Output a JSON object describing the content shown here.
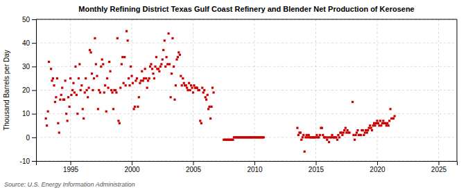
{
  "chart_data": {
    "type": "scatter",
    "title": "Monthly Refining District Texas Gulf Coast Refinery and Blender Net Production of Kerosene",
    "ylabel": "Thousand Barrels per Day",
    "annotations": [
      "Source: U.S. Energy Information Administration"
    ],
    "color": "#cc0000",
    "marker": "square",
    "grid": true,
    "xlim": [
      1992.2,
      2026.5
    ],
    "ylim": [
      -10,
      50
    ],
    "xticks": [
      1995,
      2000,
      2005,
      2010,
      2015,
      2020,
      2025
    ],
    "yticks": [
      -10,
      0,
      10,
      20,
      30,
      40,
      50
    ],
    "x": [
      1993.0,
      1993.08,
      1993.17,
      1993.25,
      1993.42,
      1993.5,
      1993.58,
      1993.67,
      1993.75,
      1993.83,
      1993.92,
      1994.0,
      1994.08,
      1994.17,
      1994.25,
      1994.33,
      1994.42,
      1994.5,
      1994.58,
      1994.67,
      1994.75,
      1994.83,
      1994.92,
      1995.0,
      1995.08,
      1995.17,
      1995.25,
      1995.33,
      1995.42,
      1995.5,
      1995.58,
      1995.67,
      1995.75,
      1995.83,
      1995.92,
      1996.0,
      1996.08,
      1996.17,
      1996.25,
      1996.33,
      1996.42,
      1996.5,
      1996.58,
      1996.67,
      1996.75,
      1996.83,
      1996.92,
      1997.0,
      1997.08,
      1997.17,
      1997.25,
      1997.33,
      1997.42,
      1997.5,
      1997.58,
      1997.67,
      1997.75,
      1997.83,
      1997.92,
      1998.0,
      1998.08,
      1998.17,
      1998.25,
      1998.33,
      1998.42,
      1998.5,
      1998.58,
      1998.67,
      1998.75,
      1998.83,
      1998.92,
      1999.0,
      1999.08,
      1999.17,
      1999.25,
      1999.33,
      1999.42,
      1999.5,
      1999.58,
      1999.67,
      1999.75,
      1999.83,
      1999.92,
      2000.0,
      2000.08,
      2000.17,
      2000.25,
      2000.33,
      2000.42,
      2000.5,
      2000.58,
      2000.67,
      2000.75,
      2000.83,
      2000.92,
      2001.0,
      2001.08,
      2001.17,
      2001.25,
      2001.33,
      2001.42,
      2001.5,
      2001.58,
      2001.67,
      2001.75,
      2001.83,
      2001.92,
      2002.0,
      2002.08,
      2002.17,
      2002.25,
      2002.33,
      2002.42,
      2002.5,
      2002.58,
      2002.67,
      2002.75,
      2002.83,
      2002.92,
      2003.0,
      2003.08,
      2003.17,
      2003.25,
      2003.33,
      2003.42,
      2003.5,
      2003.58,
      2003.67,
      2003.75,
      2003.83,
      2003.92,
      2004.0,
      2004.08,
      2004.17,
      2004.25,
      2004.33,
      2004.42,
      2004.5,
      2004.58,
      2004.67,
      2004.75,
      2004.83,
      2004.92,
      2005.0,
      2005.08,
      2005.17,
      2005.25,
      2005.33,
      2005.42,
      2005.5,
      2005.58,
      2005.67,
      2005.75,
      2005.83,
      2005.92,
      2006.0,
      2006.08,
      2006.17,
      2006.25,
      2006.33,
      2006.42,
      2006.5,
      2006.58,
      2006.67,
      2007.5,
      2007.58,
      2007.67,
      2007.75,
      2007.83,
      2007.92,
      2008.0,
      2008.08,
      2008.17,
      2008.25,
      2008.33,
      2008.42,
      2008.5,
      2008.58,
      2008.67,
      2008.75,
      2008.83,
      2008.92,
      2009.0,
      2009.08,
      2009.17,
      2009.25,
      2009.33,
      2009.42,
      2009.5,
      2009.58,
      2009.67,
      2009.75,
      2009.83,
      2009.92,
      2010.0,
      2010.08,
      2010.17,
      2010.25,
      2010.33,
      2010.42,
      2010.5,
      2010.58,
      2010.67,
      2010.75,
      2013.5,
      2013.58,
      2013.67,
      2013.75,
      2013.83,
      2013.92,
      2014.0,
      2014.08,
      2014.17,
      2014.25,
      2014.33,
      2014.42,
      2014.5,
      2014.58,
      2014.67,
      2014.75,
      2014.83,
      2014.92,
      2015.0,
      2015.08,
      2015.17,
      2015.25,
      2015.33,
      2015.42,
      2015.5,
      2015.58,
      2015.67,
      2015.75,
      2015.83,
      2015.92,
      2016.0,
      2016.08,
      2016.17,
      2016.25,
      2016.33,
      2016.42,
      2016.5,
      2016.58,
      2016.67,
      2016.75,
      2016.83,
      2016.92,
      2017.0,
      2017.08,
      2017.17,
      2017.25,
      2017.33,
      2017.42,
      2017.5,
      2017.58,
      2017.67,
      2017.75,
      2018.0,
      2018.08,
      2018.17,
      2018.25,
      2018.33,
      2018.42,
      2018.5,
      2018.58,
      2018.67,
      2018.75,
      2018.83,
      2018.92,
      2019.0,
      2019.08,
      2019.17,
      2019.25,
      2019.33,
      2019.42,
      2019.5,
      2019.58,
      2019.67,
      2019.75,
      2019.83,
      2019.92,
      2020.0,
      2020.08,
      2020.17,
      2020.25,
      2020.33,
      2020.42,
      2020.5,
      2020.58,
      2020.67,
      2020.75,
      2020.83,
      2020.92,
      2021.0,
      2021.08,
      2021.17,
      2021.25,
      2021.33,
      2021.42
    ],
    "values": [
      8,
      5,
      11,
      32,
      29,
      24,
      25,
      22,
      15,
      17,
      25,
      6,
      2,
      16,
      18,
      21,
      16,
      16,
      24,
      10,
      7,
      17,
      13,
      25,
      18,
      20,
      23,
      19,
      30,
      18,
      10,
      25,
      31,
      20,
      22,
      12,
      8,
      19,
      25,
      20,
      17,
      21,
      37,
      36,
      27,
      20,
      25,
      42,
      31,
      26,
      12,
      20,
      19,
      30,
      33,
      31,
      19,
      22,
      11,
      25,
      21,
      32,
      28,
      20,
      19,
      12,
      20,
      20,
      19,
      42,
      7,
      6,
      21,
      31,
      34,
      23,
      34,
      22,
      45,
      41,
      25,
      22,
      30,
      26,
      23,
      12,
      13,
      24,
      25,
      13,
      17,
      23,
      24,
      28,
      24,
      25,
      29,
      25,
      21,
      24,
      25,
      30,
      31,
      29,
      27,
      25,
      30,
      34,
      29,
      29,
      28,
      30,
      31,
      33,
      37,
      41,
      30,
      34,
      31,
      44,
      31,
      17,
      27,
      42,
      30,
      16,
      22,
      33,
      34,
      36,
      35,
      26,
      22,
      25,
      23,
      22,
      22,
      21,
      20,
      23,
      20,
      22,
      21,
      19,
      22,
      21,
      21,
      21,
      20,
      20,
      7,
      6,
      21,
      19,
      20,
      17,
      16,
      18,
      12,
      13,
      8,
      13,
      21,
      19,
      -1,
      -1,
      -1,
      -1,
      -1,
      -1,
      -1,
      -1,
      -1,
      -1,
      0,
      0,
      0,
      0,
      0,
      0,
      0,
      0,
      0,
      0,
      0,
      0,
      0,
      0,
      0,
      0,
      0,
      0,
      0,
      0,
      0,
      0,
      0,
      0,
      0,
      0,
      0,
      0,
      0,
      0,
      4,
      1,
      2,
      2,
      -1,
      0,
      1,
      -6,
      0,
      1,
      0,
      1,
      0,
      0,
      0,
      0,
      0,
      0,
      0,
      1,
      0,
      0,
      1,
      4,
      4,
      1,
      0,
      0,
      0,
      -1,
      0,
      -2,
      0,
      0,
      1,
      0,
      0,
      0,
      0,
      -1,
      1,
      0,
      2,
      2,
      1,
      2,
      3,
      4,
      2,
      3,
      2,
      2,
      15,
      1,
      -1,
      1,
      2,
      3,
      1,
      1,
      1,
      3,
      3,
      1,
      2,
      3,
      2,
      3,
      4,
      5,
      4,
      3,
      5,
      6,
      5,
      6,
      7,
      6,
      5,
      7,
      5,
      6,
      7,
      6,
      6,
      5,
      6,
      5,
      7,
      12,
      8,
      8,
      8,
      9
    ]
  }
}
